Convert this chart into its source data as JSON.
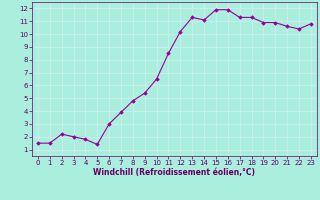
{
  "x": [
    0,
    1,
    2,
    3,
    4,
    5,
    6,
    7,
    8,
    9,
    10,
    11,
    12,
    13,
    14,
    15,
    16,
    17,
    18,
    19,
    20,
    21,
    22,
    23
  ],
  "y": [
    1.5,
    1.5,
    2.2,
    2.0,
    1.8,
    1.4,
    3.0,
    3.9,
    4.8,
    5.4,
    6.5,
    8.5,
    10.2,
    11.3,
    11.1,
    11.9,
    11.9,
    11.3,
    11.3,
    10.9,
    10.9,
    10.6,
    10.4,
    10.8
  ],
  "line_color": "#990099",
  "marker": "D",
  "markersize": 1.8,
  "linewidth": 0.8,
  "background_color": "#aaeedd",
  "grid_color": "#cceeee",
  "xlabel": "Windchill (Refroidissement éolien,°C)",
  "xlabel_color": "#660066",
  "xlabel_fontsize": 5.5,
  "tick_color": "#660066",
  "tick_fontsize": 5,
  "xlim": [
    -0.5,
    23.5
  ],
  "ylim": [
    0.5,
    12.5
  ],
  "yticks": [
    1,
    2,
    3,
    4,
    5,
    6,
    7,
    8,
    9,
    10,
    11,
    12
  ],
  "xticks": [
    0,
    1,
    2,
    3,
    4,
    5,
    6,
    7,
    8,
    9,
    10,
    11,
    12,
    13,
    14,
    15,
    16,
    17,
    18,
    19,
    20,
    21,
    22,
    23
  ]
}
